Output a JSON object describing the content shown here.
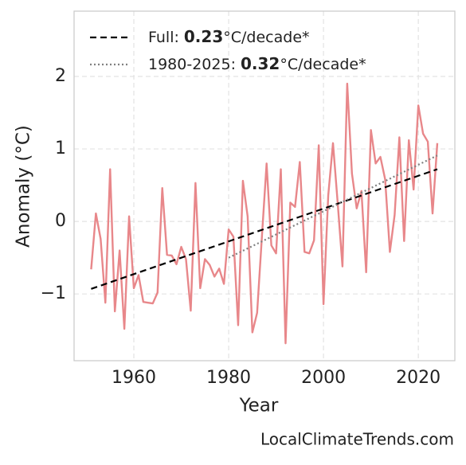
{
  "chart_data": {
    "type": "line",
    "xlabel": "Year",
    "ylabel": "Anomaly (°C)",
    "source": "LocalClimateTrends.com",
    "xlim": [
      1947.4,
      2027.7
    ],
    "ylim": [
      -1.92,
      2.9
    ],
    "xticks": [
      1960,
      1980,
      2000,
      2020
    ],
    "yticks": [
      {
        "value": -1,
        "label": "−1"
      },
      0,
      1,
      2
    ],
    "grid": true,
    "legend": "upper left",
    "x": [
      1951,
      1952,
      1953,
      1954,
      1955,
      1956,
      1957,
      1958,
      1959,
      1960,
      1961,
      1962,
      1963,
      1964,
      1965,
      1966,
      1967,
      1968,
      1969,
      1970,
      1971,
      1972,
      1973,
      1974,
      1975,
      1976,
      1977,
      1978,
      1979,
      1980,
      1981,
      1982,
      1983,
      1984,
      1985,
      1986,
      1987,
      1988,
      1989,
      1990,
      1991,
      1992,
      1993,
      1994,
      1995,
      1996,
      1997,
      1998,
      1999,
      2000,
      2001,
      2002,
      2003,
      2004,
      2005,
      2006,
      2007,
      2008,
      2009,
      2010,
      2011,
      2012,
      2013,
      2014,
      2015,
      2016,
      2017,
      2018,
      2019,
      2020,
      2021,
      2022,
      2023,
      2024
    ],
    "values": [
      -0.66,
      0.11,
      -0.24,
      -1.12,
      0.72,
      -1.24,
      -0.4,
      -1.48,
      0.07,
      -0.92,
      -0.74,
      -1.11,
      -1.12,
      -1.13,
      -0.98,
      0.46,
      -0.46,
      -0.47,
      -0.59,
      -0.35,
      -0.52,
      -1.23,
      0.53,
      -0.92,
      -0.52,
      -0.6,
      -0.76,
      -0.65,
      -0.86,
      -0.11,
      -0.21,
      -1.43,
      0.56,
      0.07,
      -1.53,
      -1.26,
      -0.22,
      0.8,
      -0.33,
      -0.44,
      0.72,
      -1.68,
      0.26,
      0.2,
      0.82,
      -0.42,
      -0.44,
      -0.26,
      1.05,
      -1.14,
      0.36,
      1.08,
      0.25,
      -0.62,
      1.9,
      0.66,
      0.18,
      0.42,
      -0.7,
      1.26,
      0.8,
      0.89,
      0.58,
      -0.42,
      0.09,
      1.16,
      -0.27,
      1.12,
      0.44,
      1.6,
      1.21,
      1.1,
      0.11,
      1.08
    ],
    "color": "#e8878a",
    "series": [
      {
        "name": "Full:",
        "slope": 0.23,
        "slope_unit": "°C/decade*",
        "color": "#000000",
        "dash": "8 5",
        "x": [
          1951,
          2024
        ],
        "values": [
          -0.93,
          0.72
        ]
      },
      {
        "name": "1980-2025:",
        "slope": 0.32,
        "slope_unit": "°C/decade*",
        "color": "#808080",
        "dash": "2 3",
        "x": [
          1980,
          2024
        ],
        "values": [
          -0.5,
          0.91
        ]
      }
    ]
  }
}
